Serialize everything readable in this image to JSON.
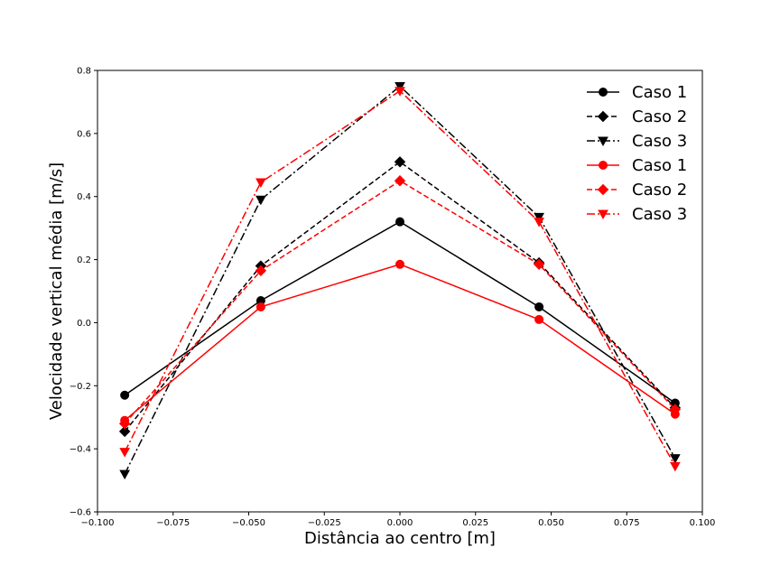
{
  "chart_data": {
    "type": "line",
    "xlabel": "Distância ao centro [m]",
    "ylabel": "Velocidade vertical média [m/s]",
    "xlim": [
      -0.1,
      0.1
    ],
    "ylim": [
      -0.6,
      0.8
    ],
    "xticks": [
      -0.1,
      -0.075,
      -0.05,
      -0.025,
      0.0,
      0.025,
      0.05,
      0.075,
      0.1
    ],
    "xtick_labels": [
      "−0.100",
      "−0.075",
      "−0.050",
      "−0.025",
      "0.000",
      "0.025",
      "0.050",
      "0.075",
      "0.100"
    ],
    "yticks": [
      -0.6,
      -0.4,
      -0.2,
      0.0,
      0.2,
      0.4,
      0.6,
      0.8
    ],
    "ytick_labels": [
      "−0.6",
      "−0.4",
      "−0.2",
      "0.0",
      "0.2",
      "0.4",
      "0.6",
      "0.8"
    ],
    "grid": false,
    "legend_position": "top-right",
    "x": [
      -0.091,
      -0.046,
      0.0,
      0.046,
      0.091
    ],
    "series": [
      {
        "name": "Caso 1",
        "color": "#000000",
        "linestyle": "solid",
        "marker": "circle",
        "values": [
          -0.23,
          0.07,
          0.32,
          0.05,
          -0.255
        ]
      },
      {
        "name": "Caso 2",
        "color": "#000000",
        "linestyle": "dashed",
        "marker": "diamond",
        "values": [
          -0.345,
          0.18,
          0.51,
          0.19,
          -0.27
        ]
      },
      {
        "name": "Caso 3",
        "color": "#000000",
        "linestyle": "dashdot",
        "marker": "triangle-down",
        "values": [
          -0.48,
          0.39,
          0.75,
          0.335,
          -0.43
        ]
      },
      {
        "name": "Caso 1",
        "color": "#ff0000",
        "linestyle": "solid",
        "marker": "circle",
        "values": [
          -0.31,
          0.05,
          0.185,
          0.01,
          -0.29
        ]
      },
      {
        "name": "Caso 2",
        "color": "#ff0000",
        "linestyle": "dashed",
        "marker": "diamond",
        "values": [
          -0.32,
          0.165,
          0.45,
          0.185,
          -0.275
        ]
      },
      {
        "name": "Caso 3",
        "color": "#ff0000",
        "linestyle": "dashdot",
        "marker": "triangle-down",
        "values": [
          -0.41,
          0.445,
          0.735,
          0.32,
          -0.455
        ]
      }
    ]
  }
}
